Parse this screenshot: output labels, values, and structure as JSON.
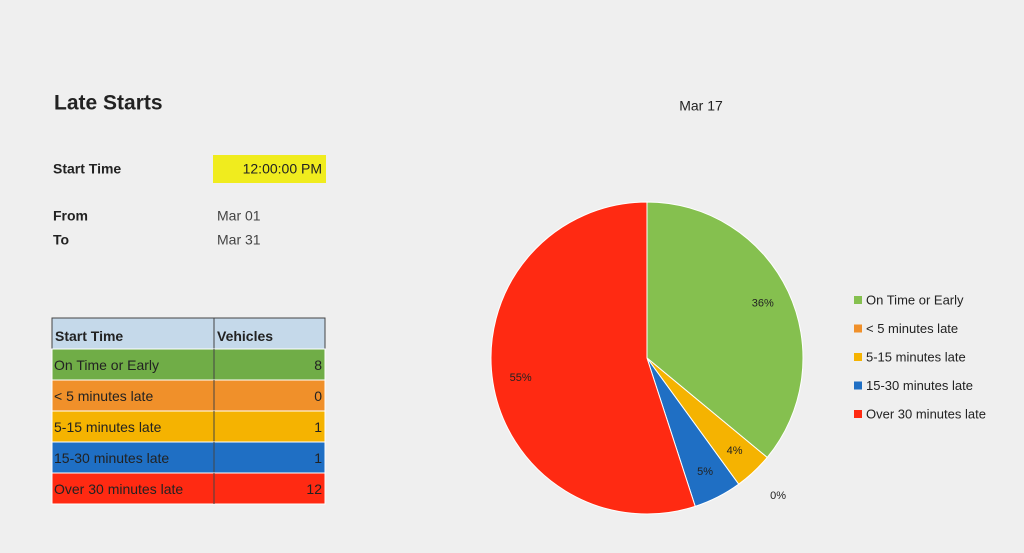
{
  "header": {
    "title": "Late Starts"
  },
  "params": {
    "start_time_label": "Start Time",
    "start_time": "12:00:00 PM",
    "from_label": "From",
    "from": "Mar 01",
    "to_label": "To",
    "to": "Mar 31"
  },
  "table": {
    "columns": [
      "Start Time",
      "Vehicles"
    ],
    "rows": [
      [
        "On Time or Early",
        8
      ],
      [
        "< 5 minutes late",
        0
      ],
      [
        "5-15 minutes late",
        1
      ],
      [
        "15-30 minutes late",
        1
      ],
      [
        "Over 30 minutes late",
        12
      ]
    ],
    "row_colors": [
      "#70ad47",
      "#f0902a",
      "#f5b301",
      "#1f6fc4",
      "#ff2a12"
    ],
    "header_color": "#c5d9ea"
  },
  "chart_data": {
    "type": "pie",
    "title": "Mar 17",
    "categories": [
      "On Time or Early",
      "< 5 minutes late",
      "5-15 minutes late",
      "15-30 minutes late",
      "Over 30 minutes late"
    ],
    "values": [
      36,
      0,
      4,
      5,
      55
    ],
    "value_labels": [
      "36%",
      "0%",
      "4%",
      "5%",
      "55%"
    ],
    "colors": [
      "#85c04f",
      "#f0902a",
      "#f5b301",
      "#1f6fc4",
      "#ff2a12"
    ],
    "legend": "right"
  }
}
